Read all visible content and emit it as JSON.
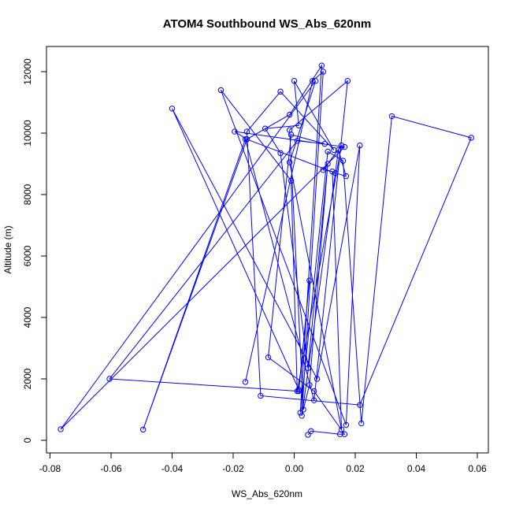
{
  "chart_data": {
    "type": "scatter",
    "title": "ATOM4 Southbound WS_Abs_620nm",
    "xlabel": "WS_Abs_620nm",
    "ylabel": "Altitude (m)",
    "xlim": [
      -0.08,
      0.06
    ],
    "ylim": [
      0,
      12000
    ],
    "xticks": [
      -0.08,
      -0.06,
      -0.04,
      -0.02,
      0.0,
      0.02,
      0.04,
      0.06
    ],
    "xtick_labels": [
      "-0.08",
      "-0.06",
      "-0.04",
      "-0.02",
      "0.00",
      "0.02",
      "0.04",
      "0.06"
    ],
    "yticks": [
      0,
      2000,
      4000,
      6000,
      8000,
      10000,
      12000
    ],
    "ytick_labels": [
      "0",
      "2000",
      "4000",
      "6000",
      "8000",
      "10000",
      "12000"
    ],
    "grid": false,
    "color": "#0000ff",
    "style": "lines-and-circles",
    "series": [
      {
        "x": [
          -0.016,
          0.006,
          0.0095,
          0.0025,
          0.0145,
          0.017,
          0.0135,
          -0.0155,
          -0.0015,
          0.009,
          0.002,
          0.011,
          0.016,
          0.022,
          0.032,
          0.058,
          0.0215,
          -0.011,
          -0.0155,
          -0.0045,
          0.013,
          0.0,
          0.0015,
          -0.0095,
          -0.0045,
          0.0045,
          0.011,
          0.005,
          0.003,
          -0.0015,
          0.0175,
          0.0065,
          -0.016,
          -0.0495,
          -0.0155,
          -0.0195,
          0.0165,
          -0.0765,
          0.007,
          -0.0015,
          0.0155,
          0.0125,
          0.0095,
          0.0155,
          0.001,
          -0.001,
          -0.024,
          0.017,
          0.0215,
          0.0075,
          -0.04,
          0.0015,
          0.005,
          0.0015,
          -0.0605,
          0.001,
          0.01,
          -0.001,
          -0.0085,
          0.0065,
          0.0165,
          0.015,
          0.0055,
          0.0045
        ],
        "y": [
          1900,
          11700,
          12000,
          800,
          9450,
          8600,
          8700,
          9800,
          10600,
          12200,
          900,
          9400,
          9100,
          550,
          10550,
          9850,
          1150,
          1450,
          10050,
          11350,
          9450,
          11700,
          10250,
          10150,
          9350,
          2350,
          9000,
          1800,
          1000,
          10100,
          11700,
          1300,
          9800,
          350,
          9800,
          10050,
          9550,
          360,
          11700,
          9050,
          350,
          8750,
          8800,
          9600,
          1600,
          8450,
          11400,
          500,
          9600,
          2000,
          10800,
          1650,
          5200,
          1600,
          2000,
          9750,
          9650,
          9950,
          2700,
          1600,
          200,
          200,
          300,
          180
        ]
      }
    ]
  }
}
